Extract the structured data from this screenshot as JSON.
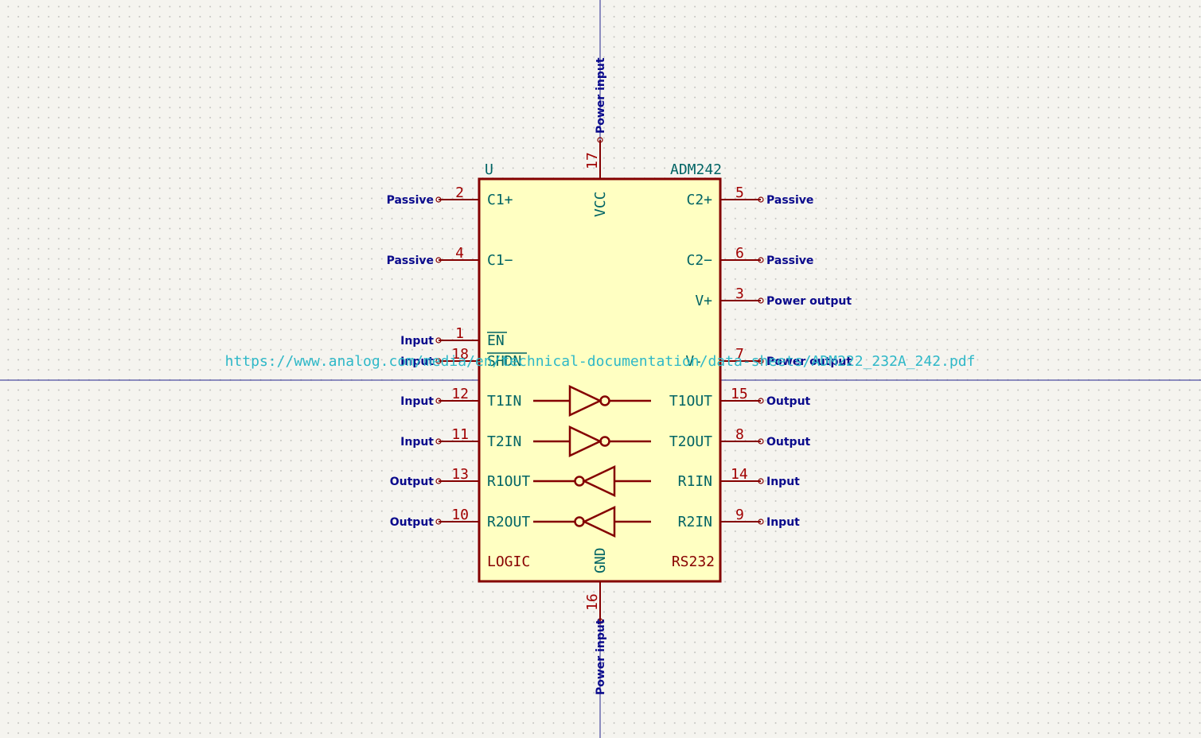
{
  "component": {
    "reference": "U",
    "value": "ADM242",
    "datasheet": "https://www.analog.com/media/en/technical-documentation/data-sheets/ADM222_232A_242.pdf"
  },
  "unit_labels": {
    "left": "LOGIC",
    "right": "RS232"
  },
  "pins": {
    "p2": {
      "num": "2",
      "name": "C1+",
      "type": "Passive"
    },
    "p4": {
      "num": "4",
      "name": "C1−",
      "type": "Passive"
    },
    "p1": {
      "num": "1",
      "name": "EN",
      "type": "Input"
    },
    "p18": {
      "num": "18",
      "name": "SHDN",
      "type": "Input"
    },
    "p12": {
      "num": "12",
      "name": "T1IN",
      "type": "Input"
    },
    "p11": {
      "num": "11",
      "name": "T2IN",
      "type": "Input"
    },
    "p13": {
      "num": "13",
      "name": "R1OUT",
      "type": "Output"
    },
    "p10": {
      "num": "10",
      "name": "R2OUT",
      "type": "Output"
    },
    "p5": {
      "num": "5",
      "name": "C2+",
      "type": "Passive"
    },
    "p6": {
      "num": "6",
      "name": "C2−",
      "type": "Passive"
    },
    "p3": {
      "num": "3",
      "name": "V+",
      "type": "Power output"
    },
    "p7": {
      "num": "7",
      "name": "V-",
      "type": "Power output"
    },
    "p15": {
      "num": "15",
      "name": "T1OUT",
      "type": "Output"
    },
    "p8": {
      "num": "8",
      "name": "T2OUT",
      "type": "Output"
    },
    "p14": {
      "num": "14",
      "name": "R1IN",
      "type": "Input"
    },
    "p9": {
      "num": "9",
      "name": "R2IN",
      "type": "Input"
    },
    "p17": {
      "num": "17",
      "name": "VCC",
      "type": "Power input"
    },
    "p16": {
      "num": "16",
      "name": "GND",
      "type": "Power input"
    }
  },
  "colors": {
    "body_fill": "#ffffc2",
    "body_stroke": "#840000",
    "pin_line": "#840000",
    "pin_number": "#a00000",
    "pin_name": "#006464",
    "pin_type": "#0a0a8c",
    "crosshair": "#24248c",
    "datasheet_url": "#2eb8c8",
    "background": "#f5f4ef"
  }
}
